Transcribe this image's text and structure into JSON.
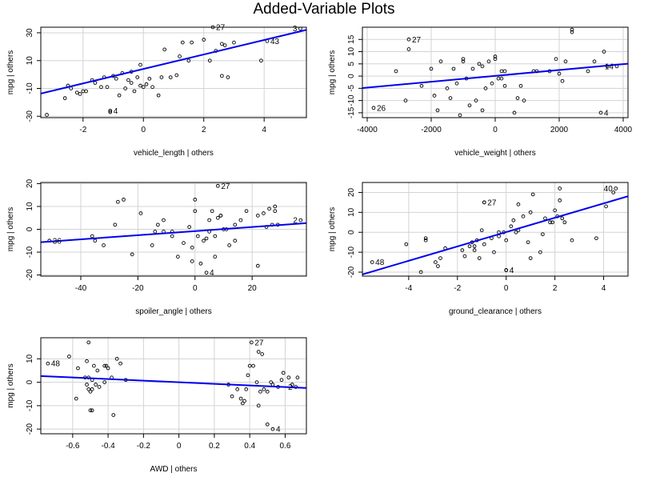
{
  "page": {
    "title": "Added-Variable Plots"
  },
  "chart_data": [
    {
      "type": "scatter",
      "xlabel": "vehicle_length | others",
      "ylabel": "mpg  | others",
      "xlim": [
        -3.4,
        5.4
      ],
      "ylim": [
        -31,
        34
      ],
      "xticks": [
        -2,
        0,
        2,
        4
      ],
      "yticks": [
        -30,
        -10,
        10,
        30
      ],
      "grid": true,
      "fit_line": {
        "slope": 5.2,
        "intercept": 4.0
      },
      "points": [
        [
          -3.2,
          -29
        ],
        [
          -2.6,
          -17
        ],
        [
          -2.5,
          -8
        ],
        [
          -2.4,
          -10
        ],
        [
          -2.2,
          -13
        ],
        [
          -2.1,
          -14
        ],
        [
          -2.0,
          -12
        ],
        [
          -1.9,
          -12
        ],
        [
          -1.7,
          -4
        ],
        [
          -1.6,
          -6
        ],
        [
          -1.4,
          -9
        ],
        [
          -1.3,
          -2
        ],
        [
          -1.2,
          -9
        ],
        [
          -1.1,
          -27
        ],
        [
          -1.0,
          -1
        ],
        [
          -0.9,
          -3
        ],
        [
          -0.8,
          -15
        ],
        [
          -0.7,
          1
        ],
        [
          -0.6,
          -10
        ],
        [
          -0.5,
          -4
        ],
        [
          -0.4,
          -6
        ],
        [
          -0.4,
          2
        ],
        [
          -0.3,
          -12
        ],
        [
          -0.2,
          -2
        ],
        [
          -0.1,
          -8
        ],
        [
          0.0,
          -9
        ],
        [
          0.1,
          -7
        ],
        [
          0.2,
          -3
        ],
        [
          0.3,
          -9
        ],
        [
          -0.1,
          7
        ],
        [
          0.5,
          -15
        ],
        [
          0.6,
          -2
        ],
        [
          0.7,
          18
        ],
        [
          0.9,
          -2
        ],
        [
          1.1,
          -0.5
        ],
        [
          1.2,
          13
        ],
        [
          1.3,
          23
        ],
        [
          1.5,
          10
        ],
        [
          1.6,
          23
        ],
        [
          2.0,
          25
        ],
        [
          2.2,
          10
        ],
        [
          2.4,
          17
        ],
        [
          2.6,
          22
        ],
        [
          2.6,
          -1
        ],
        [
          2.7,
          21
        ],
        [
          2.8,
          -2
        ],
        [
          3.0,
          23
        ],
        [
          3.9,
          10
        ],
        [
          4.1,
          24
        ],
        [
          5.2,
          33
        ],
        [
          2.3,
          34
        ],
        [
          -1.1,
          -26
        ]
      ],
      "labels": [
        {
          "text": "27",
          "x": 2.3,
          "y": 34
        },
        {
          "text": "43",
          "x": 4.1,
          "y": 24
        },
        {
          "text": "3",
          "x": 5.2,
          "y": 33
        },
        {
          "text": "4",
          "x": -1.1,
          "y": -26
        }
      ]
    },
    {
      "type": "scatter",
      "xlabel": "vehicle_weight | others",
      "ylabel": "mpg  | others",
      "xlim": [
        -4150,
        4150
      ],
      "ylim": [
        -17,
        20
      ],
      "xticks": [
        -4000,
        -2000,
        0,
        2000,
        4000
      ],
      "yticks": [
        -15,
        -10,
        -5,
        0,
        5,
        10,
        15
      ],
      "grid": true,
      "fit_line": {
        "slope": 0.0012,
        "intercept": 0.1
      },
      "points": [
        [
          -3800,
          -13
        ],
        [
          -3100,
          2
        ],
        [
          -2800,
          -10
        ],
        [
          -2700,
          11
        ],
        [
          -2700,
          15
        ],
        [
          -2300,
          -4
        ],
        [
          -2000,
          3
        ],
        [
          -1900,
          -8
        ],
        [
          -1800,
          -14
        ],
        [
          -1700,
          6
        ],
        [
          -1500,
          -5
        ],
        [
          -1400,
          -9
        ],
        [
          -1300,
          3
        ],
        [
          -1200,
          -3
        ],
        [
          -1100,
          -16
        ],
        [
          -1000,
          7
        ],
        [
          -1000,
          6
        ],
        [
          -900,
          -1
        ],
        [
          -800,
          -12
        ],
        [
          -700,
          3
        ],
        [
          -600,
          -10
        ],
        [
          -500,
          5
        ],
        [
          -400,
          -14
        ],
        [
          -400,
          4
        ],
        [
          -300,
          -5
        ],
        [
          -200,
          6
        ],
        [
          -100,
          -3
        ],
        [
          0,
          8
        ],
        [
          0,
          7
        ],
        [
          100,
          -1
        ],
        [
          200,
          -1
        ],
        [
          200,
          2
        ],
        [
          300,
          2
        ],
        [
          300,
          -4
        ],
        [
          600,
          -15
        ],
        [
          700,
          -9
        ],
        [
          800,
          -4
        ],
        [
          900,
          -10
        ],
        [
          1200,
          2
        ],
        [
          1300,
          2
        ],
        [
          1700,
          2
        ],
        [
          1900,
          7
        ],
        [
          2000,
          1
        ],
        [
          2100,
          -2
        ],
        [
          2200,
          6
        ],
        [
          2400,
          18
        ],
        [
          2400,
          19
        ],
        [
          2900,
          2
        ],
        [
          3100,
          6
        ],
        [
          3300,
          -15
        ],
        [
          3400,
          10
        ],
        [
          3500,
          4
        ],
        [
          3800,
          4
        ]
      ],
      "labels": [
        {
          "text": "27",
          "x": -2700,
          "y": 15
        },
        {
          "text": "26",
          "x": -3800,
          "y": -13
        },
        {
          "text": "14",
          "x": 3800,
          "y": 4
        },
        {
          "text": "4",
          "x": 3300,
          "y": -15
        }
      ]
    },
    {
      "type": "scatter",
      "xlabel": "spoiler_angle | others",
      "ylabel": "mpg  | others",
      "xlim": [
        -54,
        39
      ],
      "ylim": [
        -20.5,
        20.5
      ],
      "xticks": [
        -40,
        -20,
        0,
        20
      ],
      "yticks": [
        -20,
        -10,
        0,
        10,
        20
      ],
      "grid": true,
      "fit_line": {
        "slope": 0.09,
        "intercept": -0.8
      },
      "points": [
        [
          -51,
          -5
        ],
        [
          -36,
          -3
        ],
        [
          -35,
          -5
        ],
        [
          -32,
          -7
        ],
        [
          -28,
          2
        ],
        [
          -27,
          12
        ],
        [
          -25,
          13
        ],
        [
          -22,
          -11
        ],
        [
          -19,
          7
        ],
        [
          -15,
          -7
        ],
        [
          -14,
          -1
        ],
        [
          -13,
          2
        ],
        [
          -11,
          4
        ],
        [
          -11,
          -1
        ],
        [
          -8,
          -1
        ],
        [
          -8,
          -3
        ],
        [
          -6,
          -12
        ],
        [
          -4,
          -6
        ],
        [
          -2,
          1
        ],
        [
          -1,
          -8
        ],
        [
          -1,
          -14
        ],
        [
          0,
          8
        ],
        [
          0,
          13
        ],
        [
          1,
          -3
        ],
        [
          2,
          -15
        ],
        [
          3,
          -5
        ],
        [
          4,
          -4
        ],
        [
          5,
          4
        ],
        [
          5,
          -1
        ],
        [
          6,
          8
        ],
        [
          7,
          -3
        ],
        [
          7,
          -12
        ],
        [
          8,
          5
        ],
        [
          9,
          6
        ],
        [
          9,
          6
        ],
        [
          10,
          0
        ],
        [
          11,
          0
        ],
        [
          12,
          -7
        ],
        [
          14,
          2
        ],
        [
          14,
          -5
        ],
        [
          16,
          4
        ],
        [
          18,
          8
        ],
        [
          22,
          -16
        ],
        [
          22,
          6
        ],
        [
          24,
          7
        ],
        [
          25,
          1
        ],
        [
          26,
          9
        ],
        [
          27,
          2
        ],
        [
          28,
          8
        ],
        [
          28,
          10
        ],
        [
          29,
          2
        ],
        [
          37,
          4
        ],
        [
          4,
          -19
        ],
        [
          8,
          19
        ]
      ],
      "labels": [
        {
          "text": "27",
          "x": 8,
          "y": 19
        },
        {
          "text": "36",
          "x": -51,
          "y": -5
        },
        {
          "text": "2",
          "x": 37,
          "y": 4
        },
        {
          "text": "4",
          "x": 4,
          "y": -19
        }
      ]
    },
    {
      "type": "scatter",
      "xlabel": "ground_clearance | others",
      "ylabel": "mpg  | others",
      "xlim": [
        -5.9,
        5.0
      ],
      "ylim": [
        -22,
        25
      ],
      "xticks": [
        -4,
        -2,
        0,
        2,
        4
      ],
      "yticks": [
        -20,
        -10,
        0,
        10,
        20
      ],
      "grid": true,
      "fit_line": {
        "slope": 3.6,
        "intercept": 0.1
      },
      "points": [
        [
          -5.5,
          -15
        ],
        [
          -4.1,
          -6
        ],
        [
          -3.5,
          -20
        ],
        [
          -3.3,
          -3
        ],
        [
          -3.3,
          -4
        ],
        [
          -2.9,
          -15
        ],
        [
          -2.8,
          -17
        ],
        [
          -2.7,
          -13
        ],
        [
          -2.5,
          -8
        ],
        [
          -1.8,
          -9
        ],
        [
          -1.7,
          -12
        ],
        [
          -1.5,
          -7
        ],
        [
          -1.4,
          -5
        ],
        [
          -1.3,
          -7
        ],
        [
          -1.3,
          -9
        ],
        [
          -1.2,
          -4
        ],
        [
          -1.1,
          -13
        ],
        [
          -1.0,
          1
        ],
        [
          -0.9,
          -6
        ],
        [
          -0.9,
          15
        ],
        [
          -0.6,
          -3
        ],
        [
          -0.5,
          -10
        ],
        [
          -0.3,
          -2
        ],
        [
          -0.3,
          0
        ],
        [
          -0.1,
          0
        ],
        [
          0.0,
          -4
        ],
        [
          0.0,
          -19
        ],
        [
          0.2,
          3
        ],
        [
          0.3,
          6
        ],
        [
          0.4,
          0
        ],
        [
          0.5,
          1
        ],
        [
          0.5,
          14
        ],
        [
          0.7,
          8
        ],
        [
          0.9,
          -5
        ],
        [
          1.0,
          10
        ],
        [
          1.0,
          -13
        ],
        [
          1.1,
          19
        ],
        [
          1.4,
          -10
        ],
        [
          1.5,
          -1
        ],
        [
          1.6,
          7
        ],
        [
          1.8,
          5
        ],
        [
          1.9,
          5
        ],
        [
          2.0,
          11
        ],
        [
          2.1,
          8
        ],
        [
          2.2,
          16
        ],
        [
          2.2,
          22
        ],
        [
          2.3,
          7
        ],
        [
          2.4,
          5
        ],
        [
          2.7,
          -4
        ],
        [
          3.7,
          -3
        ],
        [
          4.1,
          13
        ],
        [
          4.4,
          20
        ],
        [
          4.5,
          22
        ],
        [
          -0.9,
          15
        ],
        [
          0.0,
          -19
        ]
      ],
      "labels": [
        {
          "text": "27",
          "x": -0.9,
          "y": 15
        },
        {
          "text": "48",
          "x": -5.5,
          "y": -15
        },
        {
          "text": "40",
          "x": 4.5,
          "y": 22
        },
        {
          "text": "4",
          "x": 0.0,
          "y": -19
        }
      ]
    },
    {
      "type": "scatter",
      "xlabel": "AWD | others",
      "ylabel": "mpg  | others",
      "xlim": [
        -0.78,
        0.72
      ],
      "ylim": [
        -22,
        19
      ],
      "xticks": [
        -0.6,
        -0.4,
        -0.2,
        0.0,
        0.2,
        0.4,
        0.6
      ],
      "yticks": [
        -20,
        -10,
        0,
        10
      ],
      "grid": true,
      "fit_line": {
        "slope": -3.4,
        "intercept": 0.0
      },
      "points": [
        [
          -0.74,
          8
        ],
        [
          -0.62,
          11
        ],
        [
          -0.58,
          -7
        ],
        [
          -0.57,
          6
        ],
        [
          -0.53,
          2
        ],
        [
          -0.52,
          -1
        ],
        [
          -0.52,
          9
        ],
        [
          -0.51,
          -3
        ],
        [
          -0.51,
          17
        ],
        [
          -0.51,
          2
        ],
        [
          -0.5,
          -12
        ],
        [
          -0.5,
          -4
        ],
        [
          -0.49,
          1
        ],
        [
          -0.49,
          -12
        ],
        [
          -0.49,
          -3
        ],
        [
          -0.48,
          7
        ],
        [
          -0.47,
          -1
        ],
        [
          -0.46,
          5
        ],
        [
          -0.45,
          -2
        ],
        [
          -0.42,
          0
        ],
        [
          -0.42,
          7
        ],
        [
          -0.41,
          7
        ],
        [
          -0.4,
          6
        ],
        [
          -0.38,
          2
        ],
        [
          -0.37,
          -14
        ],
        [
          -0.35,
          10
        ],
        [
          -0.33,
          8
        ],
        [
          -0.3,
          1
        ],
        [
          0.28,
          -1
        ],
        [
          0.3,
          -6
        ],
        [
          0.33,
          -3
        ],
        [
          0.35,
          -7
        ],
        [
          0.36,
          -9
        ],
        [
          0.37,
          -8
        ],
        [
          0.38,
          -3
        ],
        [
          0.39,
          3
        ],
        [
          0.4,
          7
        ],
        [
          0.41,
          17
        ],
        [
          0.42,
          7
        ],
        [
          0.44,
          0
        ],
        [
          0.45,
          -10
        ],
        [
          0.45,
          13
        ],
        [
          0.46,
          -4
        ],
        [
          0.47,
          12
        ],
        [
          0.48,
          -3
        ],
        [
          0.5,
          -4
        ],
        [
          0.5,
          -18
        ],
        [
          0.52,
          0
        ],
        [
          0.53,
          -20
        ],
        [
          0.53,
          -1
        ],
        [
          0.56,
          -2
        ],
        [
          0.58,
          1
        ],
        [
          0.59,
          4
        ],
        [
          0.62,
          2
        ],
        [
          0.64,
          -1
        ],
        [
          0.66,
          -2
        ],
        [
          0.67,
          2
        ]
      ],
      "labels": [
        {
          "text": "27",
          "x": 0.41,
          "y": 17
        },
        {
          "text": "48",
          "x": -0.74,
          "y": 8
        },
        {
          "text": "2",
          "x": 0.66,
          "y": -2
        },
        {
          "text": "4",
          "x": 0.53,
          "y": -20
        }
      ]
    }
  ]
}
